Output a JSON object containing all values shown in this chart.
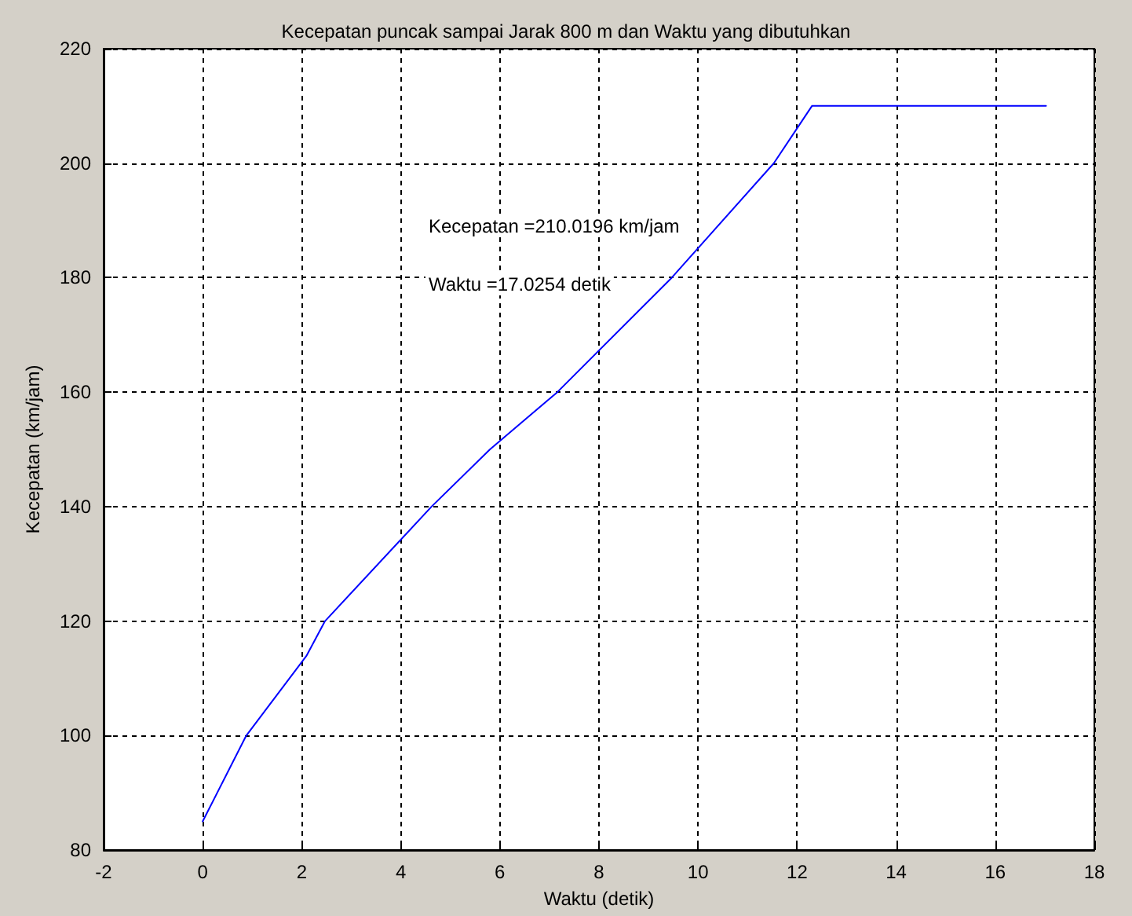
{
  "chart_data": {
    "type": "line",
    "title": "Kecepatan puncak sampai Jarak 800 m dan Waktu yang dibutuhkan",
    "xlabel": "Waktu (detik)",
    "ylabel": "Kecepatan (km/jam)",
    "x": [
      0,
      0.88,
      2.1,
      2.47,
      4.62,
      5.8,
      7.16,
      9.47,
      11.53,
      12.3,
      17.0254
    ],
    "series": [
      {
        "color": "#0000ff",
        "values": [
          85,
          100,
          114,
          120,
          140,
          150,
          160,
          180,
          200,
          210,
          210
        ]
      }
    ],
    "xlim": [
      -2,
      18
    ],
    "xticks": [
      -2,
      0,
      2,
      4,
      6,
      8,
      10,
      12,
      14,
      16,
      18
    ],
    "ylim": [
      80,
      220
    ],
    "yticks": [
      80,
      100,
      120,
      140,
      160,
      180,
      200,
      220
    ],
    "grid": true,
    "marker": "none",
    "line_style": "solid",
    "annotations": [
      "Kecepatan =210.0196 km/jam",
      "Waktu =17.0254 detik"
    ]
  }
}
